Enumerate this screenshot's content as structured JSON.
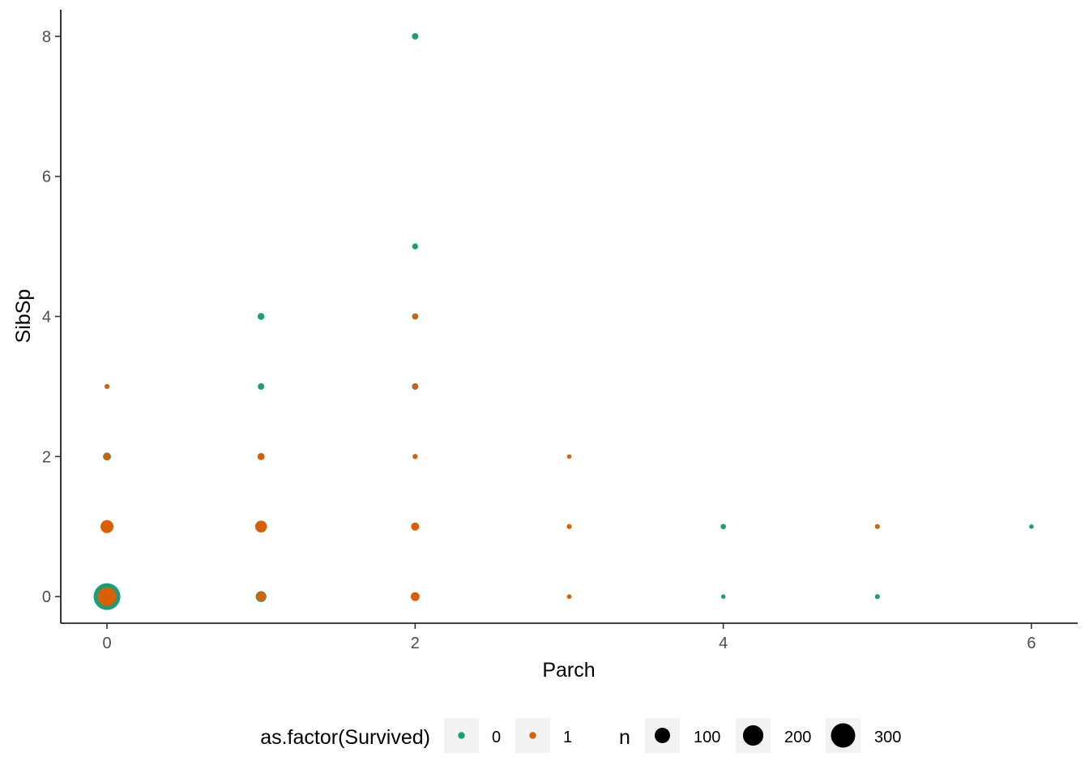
{
  "chart_data": {
    "type": "scatter",
    "title": "",
    "xlabel": "Parch",
    "ylabel": "SibSp",
    "xlim": [
      -0.3,
      6.3
    ],
    "ylim": [
      -0.38,
      8.38
    ],
    "x_ticks": [
      0,
      2,
      4,
      6
    ],
    "y_ticks": [
      0,
      2,
      4,
      6,
      8
    ],
    "grid": false,
    "legend_position": "bottom",
    "color_legend": {
      "title": "as.factor(Survived)",
      "entries": [
        {
          "label": "0",
          "color": "#1b9e77"
        },
        {
          "label": "1",
          "color": "#d95f02"
        }
      ]
    },
    "size_legend": {
      "title": "n",
      "entries": [
        {
          "label": "100",
          "value": 100
        },
        {
          "label": "200",
          "value": 200
        },
        {
          "label": "300",
          "value": 300
        }
      ]
    },
    "series": [
      {
        "name": "0",
        "color": "#1b9e77",
        "points": [
          {
            "x": 0,
            "y": 0,
            "n": 374
          },
          {
            "x": 0,
            "y": 1,
            "n": 59
          },
          {
            "x": 0,
            "y": 2,
            "n": 15
          },
          {
            "x": 0,
            "y": 3,
            "n": 1
          },
          {
            "x": 1,
            "y": 0,
            "n": 38
          },
          {
            "x": 1,
            "y": 1,
            "n": 48
          },
          {
            "x": 1,
            "y": 2,
            "n": 10
          },
          {
            "x": 1,
            "y": 3,
            "n": 7
          },
          {
            "x": 1,
            "y": 4,
            "n": 9
          },
          {
            "x": 2,
            "y": 0,
            "n": 8
          },
          {
            "x": 2,
            "y": 1,
            "n": 10
          },
          {
            "x": 2,
            "y": 2,
            "n": 2
          },
          {
            "x": 2,
            "y": 3,
            "n": 7
          },
          {
            "x": 2,
            "y": 4,
            "n": 6
          },
          {
            "x": 2,
            "y": 5,
            "n": 5
          },
          {
            "x": 2,
            "y": 8,
            "n": 7
          },
          {
            "x": 3,
            "y": 0,
            "n": 1
          },
          {
            "x": 3,
            "y": 1,
            "n": 1
          },
          {
            "x": 4,
            "y": 0,
            "n": 1
          },
          {
            "x": 4,
            "y": 1,
            "n": 3
          },
          {
            "x": 5,
            "y": 0,
            "n": 2
          },
          {
            "x": 5,
            "y": 1,
            "n": 2
          },
          {
            "x": 6,
            "y": 1,
            "n": 1
          }
        ]
      },
      {
        "name": "1",
        "color": "#d95f02",
        "points": [
          {
            "x": 0,
            "y": 0,
            "n": 163
          },
          {
            "x": 0,
            "y": 1,
            "n": 64
          },
          {
            "x": 0,
            "y": 2,
            "n": 8
          },
          {
            "x": 0,
            "y": 3,
            "n": 2
          },
          {
            "x": 1,
            "y": 0,
            "n": 27
          },
          {
            "x": 1,
            "y": 1,
            "n": 48
          },
          {
            "x": 1,
            "y": 2,
            "n": 9
          },
          {
            "x": 2,
            "y": 0,
            "n": 21
          },
          {
            "x": 2,
            "y": 1,
            "n": 16
          },
          {
            "x": 2,
            "y": 2,
            "n": 2
          },
          {
            "x": 2,
            "y": 3,
            "n": 4
          },
          {
            "x": 2,
            "y": 4,
            "n": 3
          },
          {
            "x": 3,
            "y": 0,
            "n": 1
          },
          {
            "x": 3,
            "y": 1,
            "n": 2
          },
          {
            "x": 3,
            "y": 2,
            "n": 1
          },
          {
            "x": 5,
            "y": 1,
            "n": 1
          }
        ]
      }
    ]
  }
}
